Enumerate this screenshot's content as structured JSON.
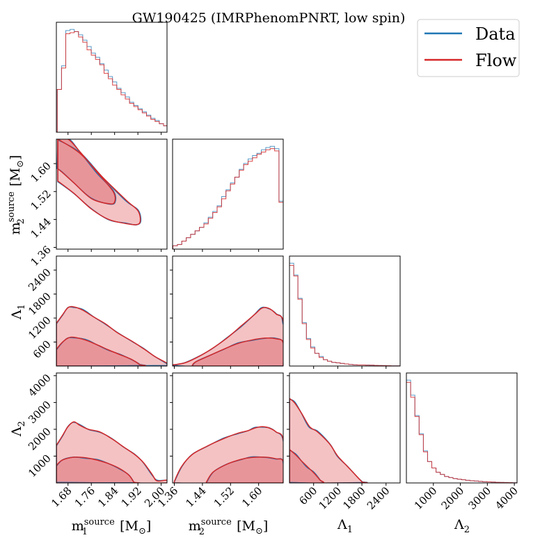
{
  "title": "GW190425 (IMRPhenomPNRT, low spin)",
  "legend": [
    {
      "name": "Data",
      "color": "#1f77b4"
    },
    {
      "name": "Flow",
      "color": "#d62728"
    }
  ],
  "chart_data": {
    "type": "corner",
    "legend_placement": "top-right",
    "series_colors": {
      "Data": "#1f77b4",
      "Flow": "#d62728"
    },
    "params": [
      {
        "label": "m1_source [M_sun]",
        "range": [
          1.64,
          2.02
        ],
        "ticks": [
          "1.68",
          "1.76",
          "1.84",
          "1.92",
          "2.00"
        ]
      },
      {
        "label": "m2_source [M_sun]",
        "range": [
          1.355,
          1.67
        ],
        "ticks": [
          "1.36",
          "1.44",
          "1.52",
          "1.60"
        ]
      },
      {
        "label": "Λ1",
        "range": [
          0,
          2750
        ],
        "ticks": [
          "600",
          "1200",
          "1800",
          "2400"
        ]
      },
      {
        "label": "Λ2",
        "range": [
          0,
          4100
        ],
        "ticks": [
          "1000",
          "2000",
          "3000",
          "4000"
        ]
      }
    ],
    "histograms": [
      {
        "param": "m1_source",
        "bin_edges_start": 1.643,
        "bin_width": 0.0146,
        "Data": [
          0.4,
          0.62,
          0.95,
          0.96,
          0.94,
          0.91,
          0.86,
          0.8,
          0.74,
          0.7,
          0.64,
          0.58,
          0.52,
          0.47,
          0.41,
          0.37,
          0.33,
          0.28,
          0.25,
          0.22,
          0.19,
          0.16,
          0.13,
          0.11,
          0.08,
          0.06
        ],
        "Flow": [
          0.4,
          0.6,
          0.92,
          0.93,
          0.94,
          0.89,
          0.84,
          0.77,
          0.72,
          0.68,
          0.63,
          0.55,
          0.5,
          0.44,
          0.4,
          0.35,
          0.31,
          0.27,
          0.24,
          0.21,
          0.18,
          0.15,
          0.12,
          0.1,
          0.08,
          0.06
        ]
      },
      {
        "param": "m2_source",
        "bin_edges_start": 1.356,
        "bin_width": 0.01258,
        "Data": [
          0.03,
          0.04,
          0.07,
          0.1,
          0.13,
          0.16,
          0.19,
          0.23,
          0.28,
          0.33,
          0.38,
          0.46,
          0.52,
          0.58,
          0.63,
          0.7,
          0.75,
          0.79,
          0.82,
          0.84,
          0.87,
          0.89,
          0.9,
          0.88,
          0.42,
          0.13
        ],
        "Flow": [
          0.03,
          0.04,
          0.07,
          0.1,
          0.13,
          0.16,
          0.19,
          0.22,
          0.27,
          0.32,
          0.37,
          0.44,
          0.51,
          0.57,
          0.63,
          0.69,
          0.74,
          0.77,
          0.8,
          0.83,
          0.85,
          0.87,
          0.88,
          0.86,
          0.41,
          0.13
        ]
      },
      {
        "param": "Λ1",
        "bin_edges_start": 0,
        "bin_width": 105,
        "Data": [
          0.97,
          0.86,
          0.64,
          0.41,
          0.26,
          0.18,
          0.12,
          0.09,
          0.06,
          0.045,
          0.035,
          0.03,
          0.025,
          0.02,
          0.015,
          0.012,
          0.01,
          0.01,
          0.01,
          0.008,
          0.006,
          0.005,
          0.004,
          0.003,
          0.002,
          0.001
        ],
        "Flow": [
          0.95,
          0.85,
          0.63,
          0.4,
          0.25,
          0.17,
          0.12,
          0.08,
          0.06,
          0.045,
          0.035,
          0.03,
          0.025,
          0.02,
          0.015,
          0.012,
          0.01,
          0.01,
          0.008,
          0.008,
          0.006,
          0.005,
          0.004,
          0.003,
          0.002,
          0.001
        ]
      },
      {
        "param": "Λ2",
        "bin_edges_start": 0,
        "bin_width": 157,
        "Data": [
          0.96,
          0.82,
          0.63,
          0.46,
          0.3,
          0.2,
          0.14,
          0.1,
          0.08,
          0.06,
          0.05,
          0.04,
          0.035,
          0.03,
          0.025,
          0.02,
          0.018,
          0.015,
          0.012,
          0.01,
          0.008,
          0.006,
          0.005,
          0.004,
          0.003,
          0.002
        ],
        "Flow": [
          0.94,
          0.8,
          0.62,
          0.45,
          0.29,
          0.2,
          0.14,
          0.1,
          0.08,
          0.06,
          0.05,
          0.04,
          0.035,
          0.03,
          0.025,
          0.02,
          0.018,
          0.015,
          0.012,
          0.01,
          0.008,
          0.006,
          0.005,
          0.004,
          0.003,
          0.002
        ]
      }
    ],
    "contours": [
      {
        "row": "m2_source",
        "col": "m1_source",
        "outer": [
          [
            1.645,
            1.67
          ],
          [
            1.72,
            1.63
          ],
          [
            1.8,
            1.56
          ],
          [
            1.88,
            1.495
          ],
          [
            1.92,
            1.465
          ],
          [
            1.928,
            1.435
          ],
          [
            1.915,
            1.425
          ],
          [
            1.88,
            1.428
          ],
          [
            1.82,
            1.44
          ],
          [
            1.76,
            1.47
          ],
          [
            1.7,
            1.515
          ],
          [
            1.645,
            1.55
          ]
        ],
        "inner": [
          [
            1.645,
            1.67
          ],
          [
            1.68,
            1.67
          ],
          [
            1.72,
            1.635
          ],
          [
            1.78,
            1.575
          ],
          [
            1.835,
            1.52
          ],
          [
            1.84,
            1.49
          ],
          [
            1.82,
            1.485
          ],
          [
            1.76,
            1.5
          ],
          [
            1.7,
            1.545
          ],
          [
            1.66,
            1.575
          ],
          [
            1.645,
            1.585
          ]
        ]
      },
      {
        "row": "Λ1",
        "col": "m1_source",
        "outer": [
          [
            1.64,
            1070
          ],
          [
            1.66,
            1270
          ],
          [
            1.68,
            1460
          ],
          [
            1.7,
            1480
          ],
          [
            1.73,
            1400
          ],
          [
            1.77,
            1220
          ],
          [
            1.81,
            1050
          ],
          [
            1.85,
            830
          ],
          [
            1.9,
            620
          ],
          [
            1.94,
            430
          ],
          [
            1.98,
            230
          ],
          [
            2.02,
            70
          ],
          [
            2.02,
            0
          ],
          [
            1.64,
            0
          ]
        ],
        "inner": [
          [
            1.64,
            420
          ],
          [
            1.66,
            590
          ],
          [
            1.68,
            700
          ],
          [
            1.7,
            720
          ],
          [
            1.74,
            650
          ],
          [
            1.78,
            530
          ],
          [
            1.82,
            400
          ],
          [
            1.86,
            280
          ],
          [
            1.9,
            160
          ],
          [
            1.925,
            40
          ],
          [
            1.925,
            0
          ],
          [
            1.64,
            0
          ]
        ]
      },
      {
        "row": "Λ1",
        "col": "m2_source",
        "outer": [
          [
            1.355,
            30
          ],
          [
            1.39,
            80
          ],
          [
            1.43,
            240
          ],
          [
            1.47,
            450
          ],
          [
            1.51,
            700
          ],
          [
            1.55,
            1000
          ],
          [
            1.59,
            1300
          ],
          [
            1.61,
            1450
          ],
          [
            1.63,
            1440
          ],
          [
            1.65,
            1300
          ],
          [
            1.67,
            1100
          ],
          [
            1.67,
            0
          ],
          [
            1.355,
            0
          ]
        ],
        "inner": [
          [
            1.41,
            0
          ],
          [
            1.42,
            100
          ],
          [
            1.46,
            260
          ],
          [
            1.5,
            420
          ],
          [
            1.54,
            560
          ],
          [
            1.58,
            650
          ],
          [
            1.62,
            700
          ],
          [
            1.65,
            680
          ],
          [
            1.67,
            580
          ],
          [
            1.67,
            0
          ]
        ]
      },
      {
        "row": "Λ2",
        "col": "m1_source",
        "outer": [
          [
            1.64,
            1400
          ],
          [
            1.66,
            1750
          ],
          [
            1.68,
            2100
          ],
          [
            1.7,
            2280
          ],
          [
            1.72,
            2150
          ],
          [
            1.75,
            2000
          ],
          [
            1.79,
            1900
          ],
          [
            1.83,
            1650
          ],
          [
            1.87,
            1350
          ],
          [
            1.91,
            1050
          ],
          [
            1.94,
            750
          ],
          [
            1.97,
            300
          ],
          [
            1.985,
            80
          ],
          [
            2.02,
            100
          ],
          [
            2.02,
            0
          ],
          [
            1.64,
            0
          ]
        ],
        "inner": [
          [
            1.64,
            650
          ],
          [
            1.66,
            850
          ],
          [
            1.7,
            960
          ],
          [
            1.74,
            940
          ],
          [
            1.78,
            850
          ],
          [
            1.82,
            720
          ],
          [
            1.86,
            520
          ],
          [
            1.89,
            280
          ],
          [
            1.905,
            40
          ],
          [
            1.905,
            0
          ],
          [
            1.64,
            0
          ]
        ]
      },
      {
        "row": "Λ2",
        "col": "m2_source",
        "outer": [
          [
            1.36,
            60
          ],
          [
            1.38,
            600
          ],
          [
            1.41,
            1050
          ],
          [
            1.45,
            1350
          ],
          [
            1.5,
            1650
          ],
          [
            1.54,
            1850
          ],
          [
            1.57,
            1950
          ],
          [
            1.59,
            2050
          ],
          [
            1.61,
            2100
          ],
          [
            1.63,
            2050
          ],
          [
            1.65,
            1900
          ],
          [
            1.67,
            1600
          ],
          [
            1.67,
            0
          ],
          [
            1.36,
            0
          ]
        ],
        "inner": [
          [
            1.45,
            0
          ],
          [
            1.47,
            400
          ],
          [
            1.51,
            700
          ],
          [
            1.55,
            880
          ],
          [
            1.58,
            950
          ],
          [
            1.62,
            960
          ],
          [
            1.65,
            900
          ],
          [
            1.67,
            800
          ],
          [
            1.67,
            0
          ]
        ]
      },
      {
        "row": "Λ2",
        "col": "Λ1",
        "outer": [
          [
            0,
            3150
          ],
          [
            120,
            3000
          ],
          [
            300,
            2600
          ],
          [
            500,
            2100
          ],
          [
            700,
            1900
          ],
          [
            1000,
            1450
          ],
          [
            1200,
            1000
          ],
          [
            1450,
            600
          ],
          [
            1700,
            200
          ],
          [
            1800,
            40
          ],
          [
            1800,
            0
          ],
          [
            0,
            0
          ]
        ],
        "inner": [
          [
            0,
            1250
          ],
          [
            150,
            1050
          ],
          [
            300,
            820
          ],
          [
            450,
            600
          ],
          [
            600,
            380
          ],
          [
            750,
            120
          ],
          [
            800,
            0
          ],
          [
            0,
            0
          ]
        ]
      }
    ]
  }
}
